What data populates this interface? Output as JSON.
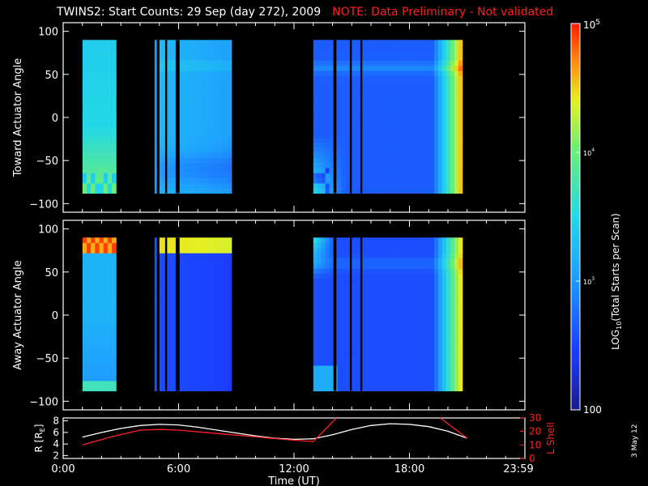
{
  "header": {
    "title": "TWINS2: Start Counts: 29 Sep (day 272), 2009",
    "note": "NOTE: Data Preliminary - Not validated"
  },
  "stamp": "3 May 12",
  "chart_data": [
    {
      "type": "heatmap",
      "name": "toward",
      "ylabel": "Toward Actuator Angle",
      "ylim": [
        -110,
        110
      ],
      "yticks": [
        "100",
        "50",
        "0",
        "−50",
        "−100"
      ],
      "ytick_values": [
        100,
        50,
        0,
        -50,
        -100
      ],
      "xlim": [
        0,
        24
      ],
      "angle_range": [
        -88,
        90
      ],
      "data_blocks": [
        {
          "start": 1.0,
          "end": 2.75,
          "profile": "toward_dusk"
        },
        {
          "start": 4.75,
          "end": 4.85,
          "profile": "toward_low"
        },
        {
          "start": 5.0,
          "end": 8.75,
          "profile": "toward_mid"
        },
        {
          "start": 13.0,
          "end": 20.75,
          "profile": "toward_late"
        }
      ],
      "gaps": [
        {
          "start": 5.3,
          "end": 5.4
        },
        {
          "start": 5.85,
          "end": 6.05
        },
        {
          "start": 14.05,
          "end": 14.2
        },
        {
          "start": 14.9,
          "end": 15.0
        },
        {
          "start": 15.45,
          "end": 15.55
        }
      ]
    },
    {
      "type": "heatmap",
      "name": "away",
      "ylabel": "Away Actuator Angle",
      "ylim": [
        -110,
        110
      ],
      "yticks": [
        "100",
        "50",
        "0",
        "−50",
        "−100"
      ],
      "ytick_values": [
        100,
        50,
        0,
        -50,
        -100
      ],
      "xlim": [
        0,
        24
      ],
      "angle_range": [
        -88,
        90
      ],
      "data_blocks": [
        {
          "start": 1.0,
          "end": 2.75,
          "profile": "away_dusk"
        },
        {
          "start": 4.75,
          "end": 4.85,
          "profile": "away_low"
        },
        {
          "start": 5.0,
          "end": 8.75,
          "profile": "away_mid"
        },
        {
          "start": 13.0,
          "end": 20.75,
          "profile": "away_late"
        }
      ],
      "gaps": [
        {
          "start": 5.3,
          "end": 5.4
        },
        {
          "start": 5.85,
          "end": 6.05
        },
        {
          "start": 14.05,
          "end": 14.2
        },
        {
          "start": 14.9,
          "end": 15.0
        },
        {
          "start": 15.45,
          "end": 15.55
        }
      ]
    },
    {
      "type": "line",
      "name": "orbit",
      "ylabel_left": "R [R",
      "ylabel_left_sub": "E",
      "ylabel_left_end": "]",
      "ylabel_right": "L Shell",
      "ylim_left": [
        1.5,
        8.5
      ],
      "ylim_right": [
        0,
        30
      ],
      "yticks_left": [
        "2",
        "4",
        "6",
        "8"
      ],
      "ytick_values_left": [
        2,
        4,
        6,
        8
      ],
      "yticks_right": [
        "0",
        "10",
        "20",
        "30"
      ],
      "ytick_values_right": [
        0,
        10,
        20,
        30
      ],
      "xlim": [
        0,
        24
      ],
      "xlabel": "Time (UT)",
      "xticks": [
        "0:00",
        "6:00",
        "12:00",
        "18:00",
        "23:59"
      ],
      "xtick_values": [
        0,
        6,
        12,
        18,
        24
      ],
      "series": [
        {
          "color": "#ffffff",
          "x": [
            1.0,
            2.0,
            3.0,
            4.0,
            5.0,
            6.0,
            7.0,
            8.0,
            9.0,
            10.0,
            11.0,
            12.0,
            13.0,
            14.0,
            15.0,
            16.0,
            17.0,
            18.0,
            19.0,
            20.0,
            21.0
          ],
          "y": [
            5.2,
            6.0,
            6.7,
            7.2,
            7.4,
            7.3,
            6.9,
            6.4,
            5.9,
            5.4,
            5.0,
            4.8,
            4.9,
            5.6,
            6.5,
            7.2,
            7.5,
            7.4,
            7.0,
            6.2,
            5.0
          ]
        },
        {
          "color": "#ff2020",
          "axis": "right",
          "x": [
            1.0,
            2.5,
            4.0,
            5.0,
            6.0,
            8.0,
            10.0,
            12.0,
            13.0,
            14.2
          ],
          "y": [
            10.0,
            16.0,
            21.0,
            21.5,
            21.0,
            18.5,
            16.0,
            13.5,
            12.5,
            30.0
          ]
        },
        {
          "color": "#ff2020",
          "axis": "right",
          "x": [
            19.6,
            21.0
          ],
          "y": [
            30.0,
            15.0
          ]
        }
      ]
    }
  ],
  "colorbar": {
    "label_prefix": "LOG",
    "label_sub": "10",
    "label_suffix": "(Total Starts per Scan)",
    "tick_top_base": "10",
    "tick_top_exp": "5",
    "tick_upper_base": "10",
    "tick_upper_exp": "4",
    "tick_lower_base": "10",
    "tick_lower_exp": "3",
    "tick_bottom": "100",
    "tick_values": [
      5,
      4,
      3,
      2
    ],
    "range": [
      2,
      5
    ]
  }
}
